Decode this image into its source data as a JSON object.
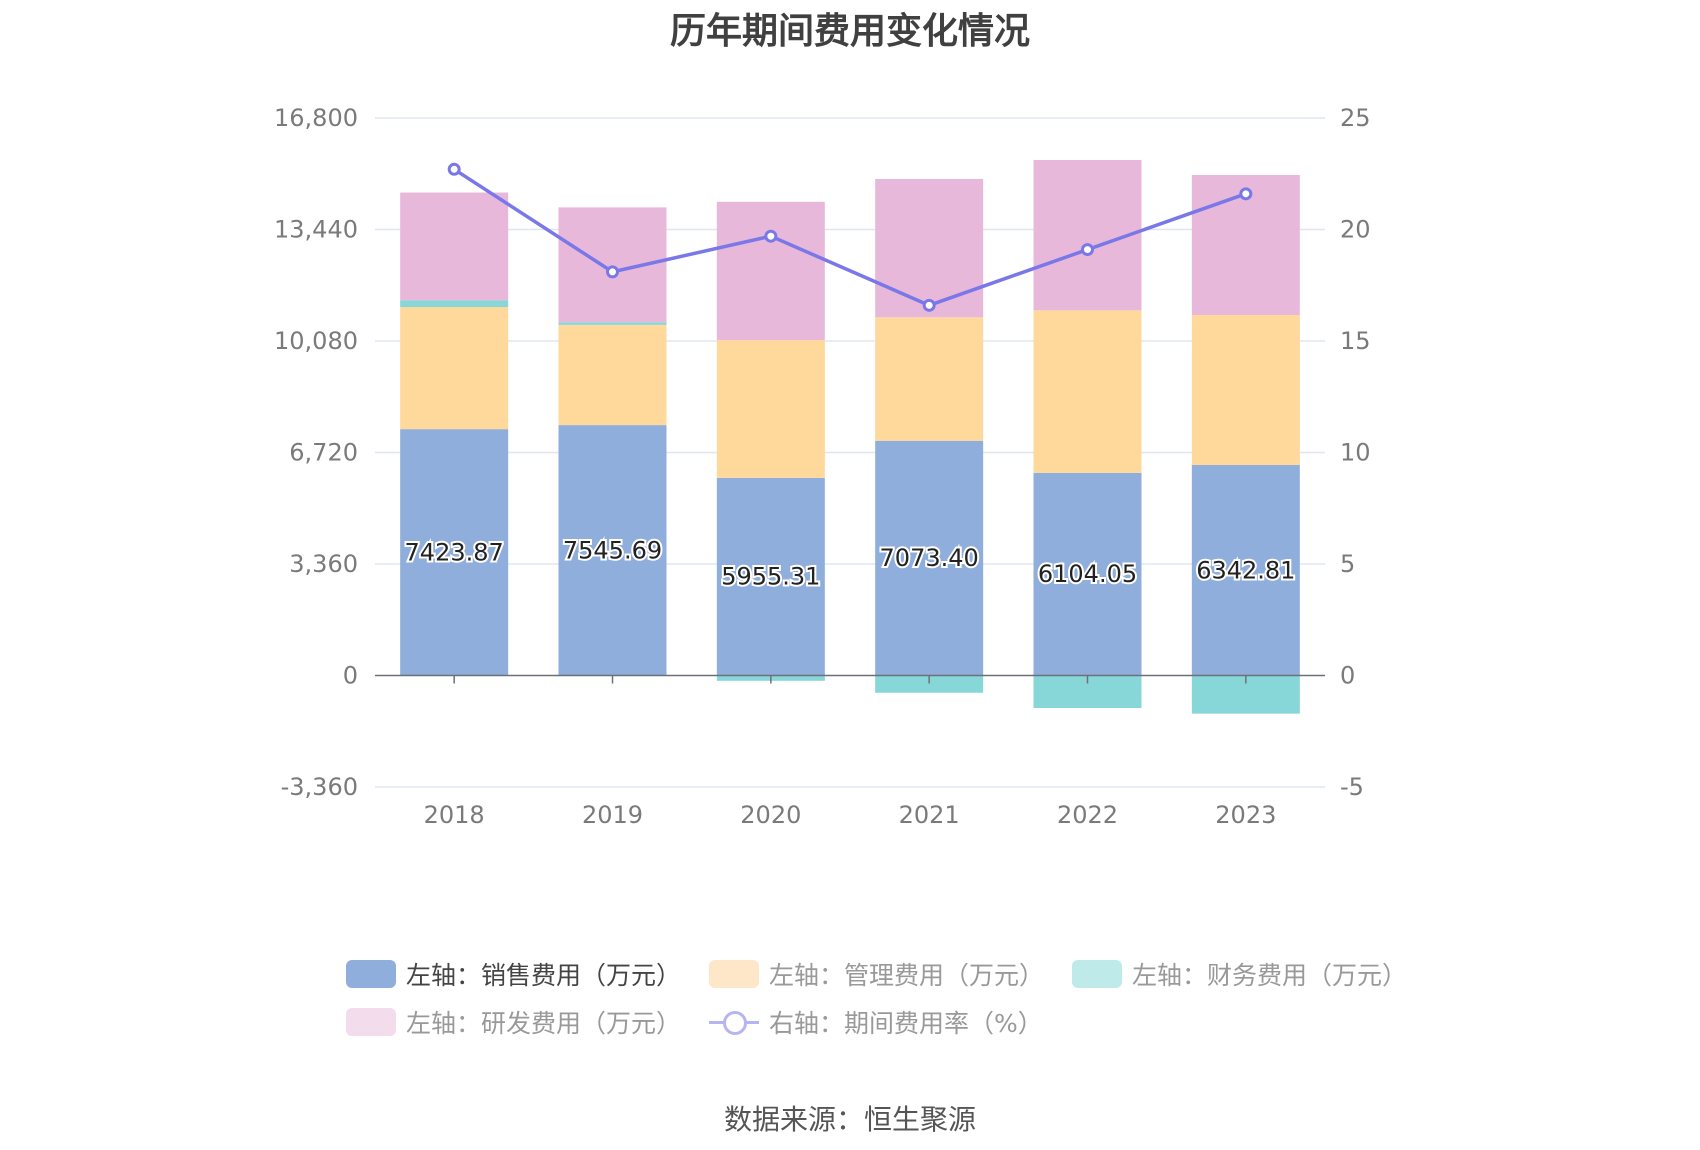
{
  "chart_data": {
    "type": "bar",
    "stacked": true,
    "title": "历年期间费用变化情况",
    "categories": [
      "2018",
      "2019",
      "2020",
      "2021",
      "2022",
      "2023"
    ],
    "y_left": {
      "ylim": [
        -3360,
        16800
      ],
      "ticks": [
        -3360,
        0,
        3360,
        6720,
        10080,
        13440,
        16800
      ],
      "tick_labels": [
        "-3,360",
        "0",
        "3,360",
        "6,720",
        "10,080",
        "13,440",
        "16,800"
      ]
    },
    "y_right": {
      "ylim": [
        -5,
        25
      ],
      "ticks": [
        -5,
        0,
        5,
        10,
        15,
        20,
        25
      ],
      "tick_labels": [
        "-5",
        "0",
        "5",
        "10",
        "15",
        "20",
        "25"
      ]
    },
    "grid": true,
    "legend_position": "bottom",
    "series": [
      {
        "name": "左轴：销售费用（万元）",
        "axis": "left",
        "color": "#8faedb",
        "values": [
          7423.87,
          7545.69,
          5955.31,
          7073.4,
          6104.05,
          6342.81
        ],
        "data_labels": [
          "7423.87",
          "7545.69",
          "5955.31",
          "7073.40",
          "6104.05",
          "6342.81"
        ]
      },
      {
        "name": "左轴：管理费用（万元）",
        "axis": "left",
        "color": "#ffd89b",
        "values": [
          3680,
          3020,
          4150,
          3720,
          4900,
          4520
        ]
      },
      {
        "name": "左轴：财务费用（万元）",
        "axis": "left",
        "color": "#88d7d8",
        "values": [
          200,
          80,
          -160,
          -520,
          -980,
          -1150
        ]
      },
      {
        "name": "左轴：研发费用（万元）",
        "axis": "left",
        "color": "#e8b8da",
        "values": [
          3250,
          3460,
          4170,
          4170,
          4530,
          4220
        ]
      },
      {
        "name": "右轴：期间费用率（%）",
        "axis": "right",
        "type": "line",
        "color": "#7a78e8",
        "values": [
          22.7,
          18.1,
          19.7,
          16.6,
          19.1,
          21.6
        ]
      }
    ],
    "legend_colors": [
      "#8faedb",
      "#fde7c8",
      "#bfeaea",
      "#f3dcec",
      "#b6b5f1"
    ]
  },
  "source": "数据来源：恒生聚源"
}
